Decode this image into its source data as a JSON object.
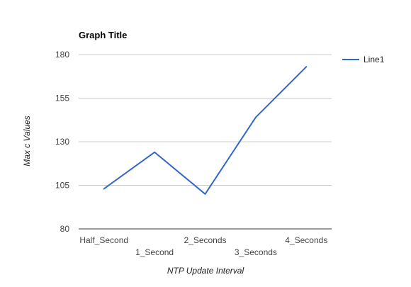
{
  "chart_data": {
    "type": "line",
    "title": "Graph Title",
    "xlabel": "NTP Update Interval",
    "ylabel": "Max c Values",
    "categories": [
      "Half_Second",
      "1_Second",
      "2_Seconds",
      "3_Seconds",
      "4_Seconds"
    ],
    "series": [
      {
        "name": "Line1",
        "values": [
          103,
          124,
          100,
          144,
          173
        ],
        "color": "#3366cc"
      }
    ],
    "ylim": [
      80,
      180
    ],
    "yticks": [
      80,
      105,
      130,
      155,
      180
    ],
    "grid": true,
    "legend": "right"
  }
}
